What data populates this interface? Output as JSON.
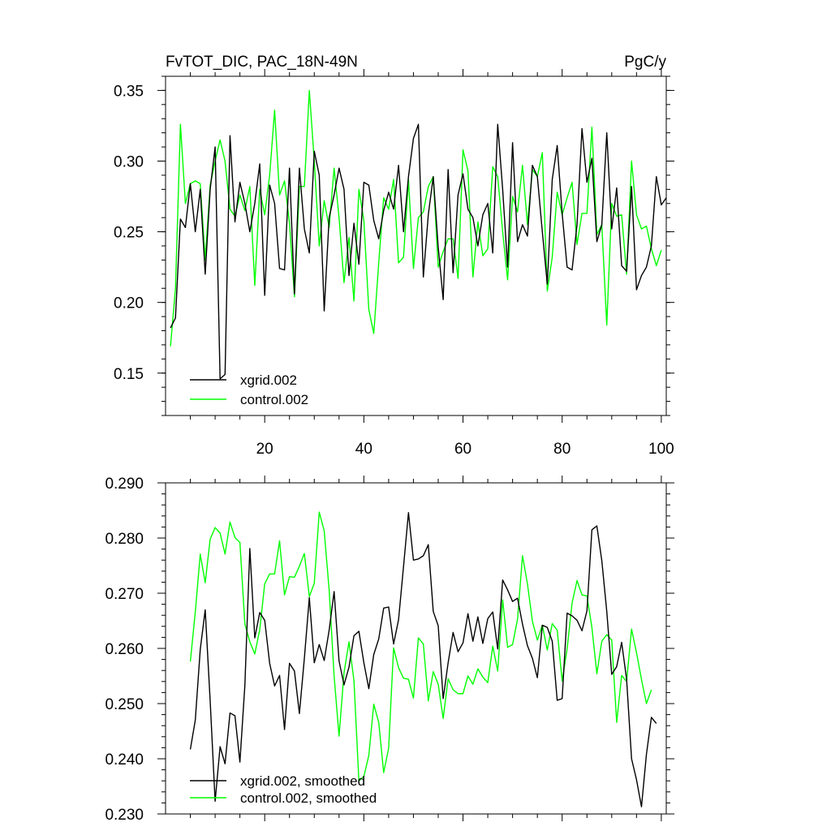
{
  "chart_data": [
    {
      "type": "line",
      "title_left": "FvTOT_DIC, PAC_18N-49N",
      "title_right": "PgC/y",
      "xlim": [
        0,
        101
      ],
      "ylim": [
        0.12,
        0.36
      ],
      "x_ticks": [
        20,
        40,
        60,
        80,
        100
      ],
      "y_ticks": [
        0.15,
        0.2,
        0.25,
        0.3,
        0.35
      ],
      "y_tick_labels": [
        "0.15",
        "0.20",
        "0.25",
        "0.30",
        "0.35"
      ],
      "x_start": 1,
      "series": [
        {
          "name": "xgrid.002",
          "color": "#000000",
          "values": [
            0.182,
            0.189,
            0.259,
            0.253,
            0.284,
            0.25,
            0.28,
            0.22,
            0.28,
            0.31,
            0.146,
            0.149,
            0.318,
            0.257,
            0.285,
            0.27,
            0.25,
            0.27,
            0.298,
            0.205,
            0.283,
            0.27,
            0.224,
            0.223,
            0.295,
            0.206,
            0.295,
            0.252,
            0.235,
            0.307,
            0.29,
            0.194,
            0.26,
            0.276,
            0.295,
            0.28,
            0.219,
            0.256,
            0.227,
            0.285,
            0.283,
            0.258,
            0.245,
            0.265,
            0.278,
            0.266,
            0.297,
            0.25,
            0.289,
            0.316,
            0.326,
            0.218,
            0.262,
            0.289,
            0.239,
            0.202,
            0.294,
            0.221,
            0.276,
            0.291,
            0.266,
            0.26,
            0.24,
            0.262,
            0.27,
            0.235,
            0.326,
            0.28,
            0.225,
            0.313,
            0.243,
            0.255,
            0.247,
            0.297,
            0.289,
            0.25,
            0.213,
            0.287,
            0.311,
            0.263,
            0.225,
            0.223,
            0.255,
            0.323,
            0.285,
            0.302,
            0.243,
            0.255,
            0.32,
            0.252,
            0.281,
            0.226,
            0.222,
            0.282,
            0.209,
            0.219,
            0.225,
            0.24,
            0.289,
            0.269,
            0.274
          ]
        },
        {
          "name": "control.002",
          "color": "#00ff00",
          "values": [
            0.169,
            0.21,
            0.326,
            0.27,
            0.284,
            0.286,
            0.284,
            0.23,
            0.283,
            0.3,
            0.315,
            0.3,
            0.266,
            0.261,
            0.276,
            0.265,
            0.282,
            0.212,
            0.28,
            0.262,
            0.29,
            0.336,
            0.276,
            0.286,
            0.256,
            0.204,
            0.282,
            0.282,
            0.35,
            0.3,
            0.24,
            0.272,
            0.253,
            0.295,
            0.26,
            0.214,
            0.246,
            0.201,
            0.28,
            0.258,
            0.195,
            0.178,
            0.228,
            0.274,
            0.266,
            0.287,
            0.228,
            0.232,
            0.287,
            0.224,
            0.26,
            0.264,
            0.282,
            0.289,
            0.225,
            0.236,
            0.245,
            0.245,
            0.217,
            0.308,
            0.293,
            0.218,
            0.257,
            0.233,
            0.238,
            0.296,
            0.289,
            0.25,
            0.216,
            0.275,
            0.264,
            0.297,
            0.255,
            0.294,
            0.289,
            0.306,
            0.208,
            0.232,
            0.278,
            0.262,
            0.274,
            0.285,
            0.241,
            0.263,
            0.263,
            0.324,
            0.248,
            0.255,
            0.184,
            0.27,
            0.261,
            0.262,
            0.22,
            0.3,
            0.262,
            0.252,
            0.254,
            0.238,
            0.226,
            0.237
          ]
        }
      ],
      "legend": "bottom-left",
      "grid": false
    },
    {
      "type": "line",
      "xlim": [
        0,
        101
      ],
      "ylim": [
        0.23,
        0.29
      ],
      "x_ticks": [
        20,
        40,
        60,
        80,
        100
      ],
      "y_ticks": [
        0.23,
        0.24,
        0.25,
        0.26,
        0.27,
        0.28,
        0.29
      ],
      "y_tick_labels": [
        "0.230",
        "0.240",
        "0.250",
        "0.260",
        "0.270",
        "0.280",
        "0.290"
      ],
      "x_start": 5,
      "series": [
        {
          "name": "xgrid.002, smoothed",
          "color": "#000000",
          "values": [
            0.2417,
            0.247,
            0.2598,
            0.267,
            0.2505,
            0.2323,
            0.2422,
            0.2391,
            0.2483,
            0.2478,
            0.2394,
            0.2533,
            0.2781,
            0.2619,
            0.2665,
            0.2651,
            0.2573,
            0.2532,
            0.2551,
            0.2453,
            0.2573,
            0.2559,
            0.2482,
            0.2582,
            0.2692,
            0.2574,
            0.2607,
            0.2578,
            0.2633,
            0.2703,
            0.2577,
            0.2534,
            0.2566,
            0.2623,
            0.2631,
            0.2574,
            0.2527,
            0.2589,
            0.2617,
            0.2673,
            0.2675,
            0.2608,
            0.2652,
            0.2748,
            0.2846,
            0.276,
            0.2762,
            0.2768,
            0.2788,
            0.2667,
            0.2641,
            0.2509,
            0.2574,
            0.2629,
            0.2594,
            0.261,
            0.2663,
            0.2613,
            0.2657,
            0.2609,
            0.2654,
            0.2666,
            0.2599,
            0.2724,
            0.2706,
            0.2685,
            0.2691,
            0.2644,
            0.2605,
            0.2582,
            0.2547,
            0.2642,
            0.2638,
            0.2613,
            0.2506,
            0.2509,
            0.2664,
            0.2659,
            0.2651,
            0.2632,
            0.2668,
            0.2815,
            0.2822,
            0.2759,
            0.2667,
            0.2553,
            0.2567,
            0.2611,
            0.2544,
            0.24,
            0.2362,
            0.2313,
            0.2408,
            0.2475,
            0.2464
          ]
        },
        {
          "name": "control.002, smoothed",
          "color": "#00ff00",
          "values": [
            0.2576,
            0.2666,
            0.2771,
            0.2719,
            0.2798,
            0.2819,
            0.2809,
            0.2771,
            0.2829,
            0.2801,
            0.2792,
            0.2644,
            0.2612,
            0.259,
            0.2634,
            0.2717,
            0.2735,
            0.2735,
            0.2795,
            0.2697,
            0.273,
            0.2729,
            0.2749,
            0.2772,
            0.2694,
            0.2718,
            0.2847,
            0.2813,
            0.2706,
            0.255,
            0.2441,
            0.2556,
            0.2612,
            0.2542,
            0.236,
            0.2368,
            0.2406,
            0.2499,
            0.2466,
            0.2375,
            0.2419,
            0.2601,
            0.2565,
            0.2546,
            0.2544,
            0.251,
            0.2619,
            0.2608,
            0.2505,
            0.2558,
            0.2535,
            0.2473,
            0.2545,
            0.2525,
            0.2518,
            0.2518,
            0.255,
            0.2535,
            0.2563,
            0.2548,
            0.2538,
            0.2604,
            0.2559,
            0.2688,
            0.2602,
            0.2607,
            0.2653,
            0.2768,
            0.2717,
            0.2649,
            0.2615,
            0.2642,
            0.2597,
            0.2645,
            0.2633,
            0.2541,
            0.2599,
            0.2682,
            0.2723,
            0.2697,
            0.2695,
            0.2638,
            0.2554,
            0.2613,
            0.2625,
            0.2615,
            0.2466,
            0.2551,
            0.254,
            0.2635,
            0.2592,
            0.2544,
            0.25,
            0.2525
          ]
        }
      ],
      "legend": "bottom-left",
      "grid": false
    }
  ]
}
